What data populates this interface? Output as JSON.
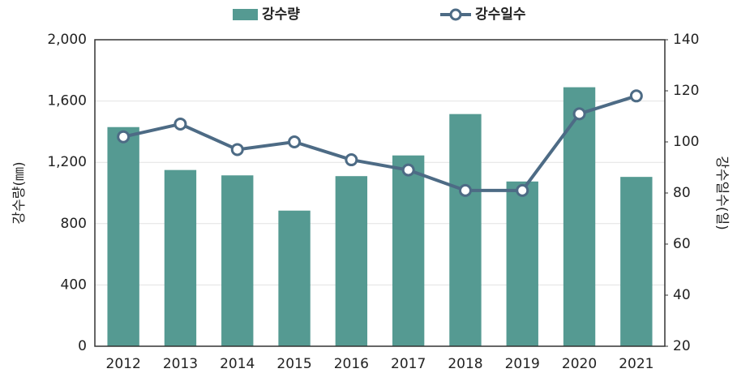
{
  "chart_data": {
    "type": "bar",
    "categories": [
      "2012",
      "2013",
      "2014",
      "2015",
      "2016",
      "2017",
      "2018",
      "2019",
      "2020",
      "2021"
    ],
    "series": [
      {
        "name": "강수량",
        "type": "bar",
        "color": "#559a92",
        "values": [
          1430,
          1150,
          1115,
          885,
          1110,
          1245,
          1515,
          1075,
          1690,
          1105
        ]
      },
      {
        "name": "강수일수",
        "type": "line",
        "axis": "y2",
        "color": "#4d6b85",
        "values": [
          102,
          107,
          97,
          100,
          93,
          89,
          81,
          81,
          111,
          118
        ]
      }
    ],
    "ylabel": "강수량(㎜)",
    "y2label": "강수일수(일)",
    "ylim": [
      0,
      2000
    ],
    "yticks": [
      0,
      400,
      800,
      {
        "value": 1200,
        "label": "1,200"
      },
      {
        "value": 1600,
        "label": "1,600"
      },
      {
        "value": 2000,
        "label": "2,000"
      }
    ],
    "y2lim": [
      20,
      140
    ],
    "y2ticks": [
      20,
      40,
      60,
      80,
      100,
      120,
      140
    ],
    "grid": true,
    "legend": "top"
  }
}
